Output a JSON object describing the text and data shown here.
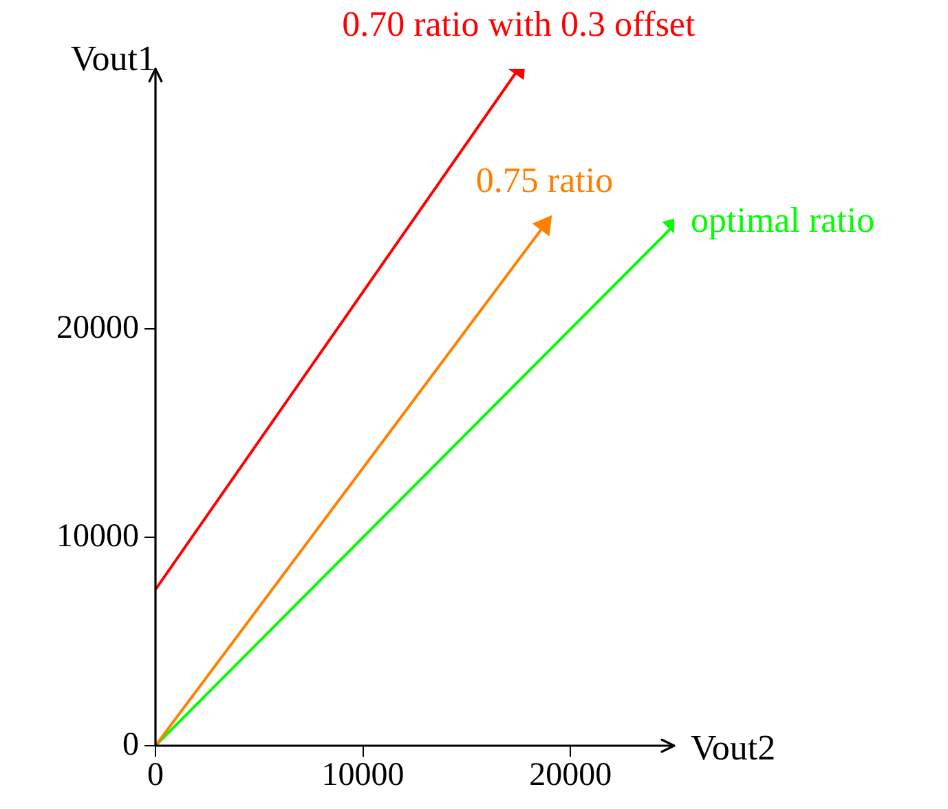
{
  "chart_data": {
    "type": "line",
    "xlabel": "Vout2",
    "ylabel": "Vout1",
    "xlim": [
      0,
      25000
    ],
    "ylim": [
      0,
      32500
    ],
    "xticks": [
      0,
      10000,
      20000
    ],
    "yticks": [
      0,
      10000,
      20000
    ],
    "series": [
      {
        "name": "0.70 ratio with 0.3 offset",
        "color": "#ff0000",
        "x": [
          0,
          17500
        ],
        "values": [
          7500,
          32500
        ]
      },
      {
        "name": "0.75 ratio",
        "color": "#ff8000",
        "x": [
          0,
          18750
        ],
        "values": [
          0,
          25000
        ]
      },
      {
        "name": "optimal ratio",
        "color": "#00ff00",
        "x": [
          0,
          25000
        ],
        "values": [
          0,
          25000
        ]
      }
    ],
    "line_style": "solid",
    "grid": false
  }
}
